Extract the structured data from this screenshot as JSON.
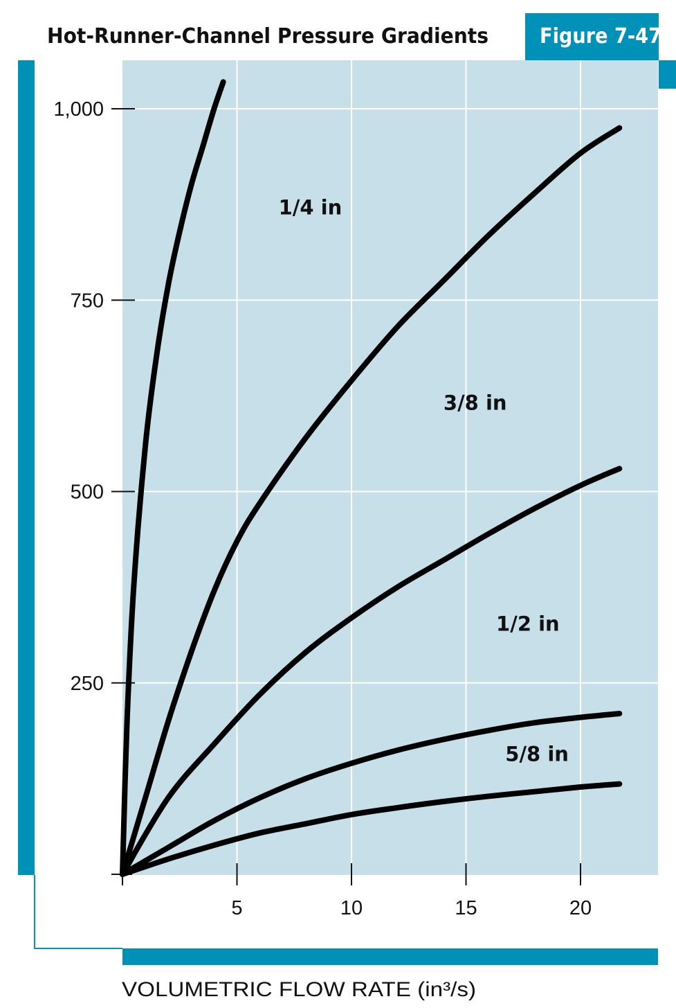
{
  "title": "Hot-Runner-Channel Pressure Gradients",
  "figure_label": "Figure 7-47",
  "colors": {
    "accent": "#0091b8",
    "plot_background": "#c6dfe9",
    "curve": "#000000",
    "grid": "#ffffff"
  },
  "chart_data": {
    "type": "line",
    "title": "Hot-Runner-Channel Pressure Gradients",
    "xlabel": "VOLUMETRIC FLOW RATE (in³/s)",
    "ylabel": "",
    "xlim": [
      0,
      23.5
    ],
    "ylim": [
      0,
      1000
    ],
    "x_ticks": [
      5,
      10,
      15,
      20
    ],
    "x_tick_labels": [
      "5",
      "10",
      "15",
      "20"
    ],
    "y_ticks": [
      250,
      500,
      750,
      1000
    ],
    "y_tick_labels": [
      "250",
      "500",
      "750",
      "1,000"
    ],
    "grid": true,
    "series": [
      {
        "name": "1/4 in",
        "x": [
          0,
          0.2,
          0.5,
          1.0,
          1.5,
          2.0,
          2.5,
          3.0,
          3.5,
          4.0,
          4.4
        ],
        "y": [
          0,
          200,
          380,
          560,
          680,
          770,
          840,
          900,
          950,
          1000,
          1035
        ]
      },
      {
        "name": "3/8 in",
        "x": [
          0,
          1,
          2,
          3,
          4,
          5,
          6,
          8,
          10,
          12,
          14,
          16,
          18,
          20,
          21.7
        ],
        "y": [
          0,
          100,
          200,
          290,
          370,
          435,
          485,
          570,
          645,
          715,
          775,
          835,
          890,
          942,
          975
        ]
      },
      {
        "name": "1/2 in",
        "x": [
          0,
          2,
          4,
          6,
          8,
          10,
          12,
          14,
          16,
          18,
          20,
          21.7
        ],
        "y": [
          0,
          100,
          170,
          235,
          290,
          335,
          375,
          410,
          445,
          478,
          508,
          530
        ]
      },
      {
        "name": "5/8 in",
        "x": [
          0,
          2,
          4,
          6,
          8,
          10,
          12,
          14,
          16,
          18,
          20,
          21.7
        ],
        "y": [
          0,
          35,
          70,
          100,
          125,
          145,
          162,
          176,
          188,
          198,
          205,
          210
        ]
      },
      {
        "name": "",
        "x": [
          0,
          2,
          4,
          6,
          8,
          10,
          12,
          14,
          16,
          18,
          20,
          21.7
        ],
        "y": [
          0,
          20,
          38,
          54,
          66,
          78,
          87,
          95,
          102,
          108,
          114,
          118
        ]
      }
    ],
    "annotations": [
      {
        "text": "1/4 in",
        "x": 8.2,
        "y": 862
      },
      {
        "text": "3/8 in",
        "x": 15.4,
        "y": 607
      },
      {
        "text": "1/2 in",
        "x": 17.7,
        "y": 318
      },
      {
        "text": "5/8 in",
        "x": 18.1,
        "y": 148
      }
    ]
  }
}
